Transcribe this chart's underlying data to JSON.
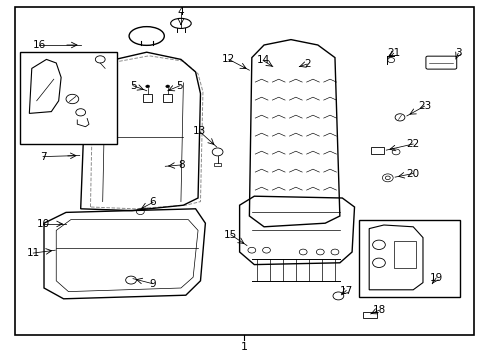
{
  "title": "",
  "fig_width": 4.89,
  "fig_height": 3.6,
  "dpi": 100,
  "bg_color": "#ffffff",
  "border_color": "#000000",
  "line_color": "#000000",
  "text_color": "#000000",
  "font_size_labels": 7.5,
  "font_size_bottom": 8,
  "bottom_label": "1"
}
